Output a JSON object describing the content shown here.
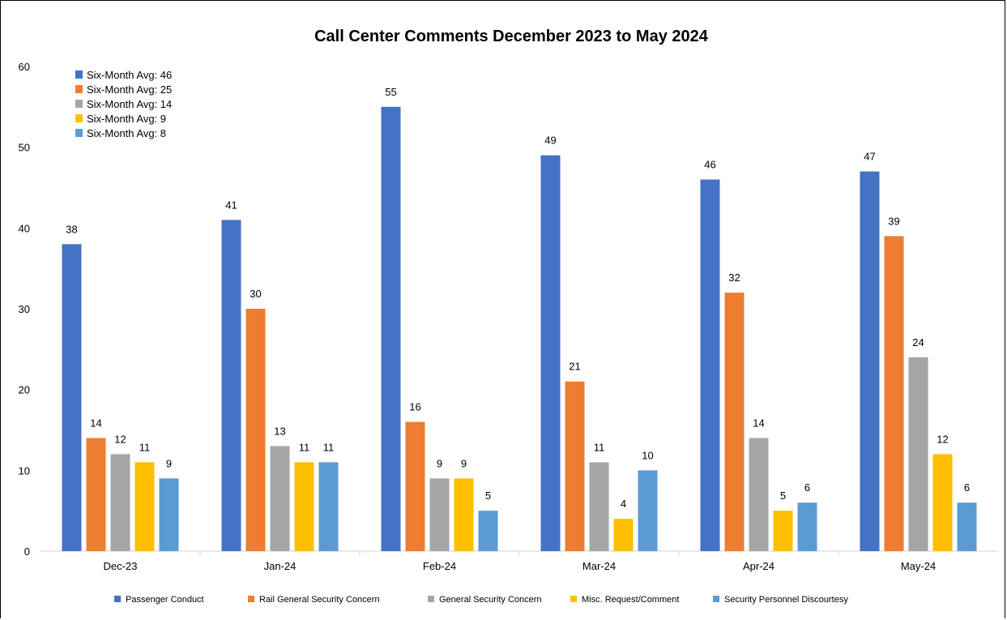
{
  "chart_data": {
    "type": "bar",
    "title": "Call Center Comments December 2023 to May 2024",
    "categories": [
      "Dec-23",
      "Jan-24",
      "Feb-24",
      "Mar-24",
      "Apr-24",
      "May-24"
    ],
    "ylim": [
      0,
      60
    ],
    "yticks": [
      0,
      10,
      20,
      30,
      40,
      50,
      60
    ],
    "grid": false,
    "legend_position": "bottom",
    "series": [
      {
        "name": "Passenger Conduct",
        "color": "#4472C4",
        "values": [
          38,
          41,
          55,
          49,
          46,
          47
        ],
        "avg_label": "Six-Month Avg: 46"
      },
      {
        "name": "Rail General Security Concern",
        "color": "#ED7D31",
        "values": [
          14,
          30,
          16,
          21,
          32,
          39
        ],
        "avg_label": "Six-Month Avg: 25"
      },
      {
        "name": "General Security Concern",
        "color": "#A5A5A5",
        "values": [
          12,
          13,
          9,
          11,
          14,
          24
        ],
        "avg_label": "Six-Month Avg: 14"
      },
      {
        "name": "Misc. Request/Comment",
        "color": "#FFC000",
        "values": [
          11,
          11,
          9,
          4,
          5,
          12
        ],
        "avg_label": "Six-Month Avg: 9"
      },
      {
        "name": "Security Personnel Discourtesy",
        "color": "#5B9BD5",
        "values": [
          9,
          11,
          5,
          10,
          6,
          6
        ],
        "avg_label": "Six-Month Avg: 8"
      }
    ]
  }
}
